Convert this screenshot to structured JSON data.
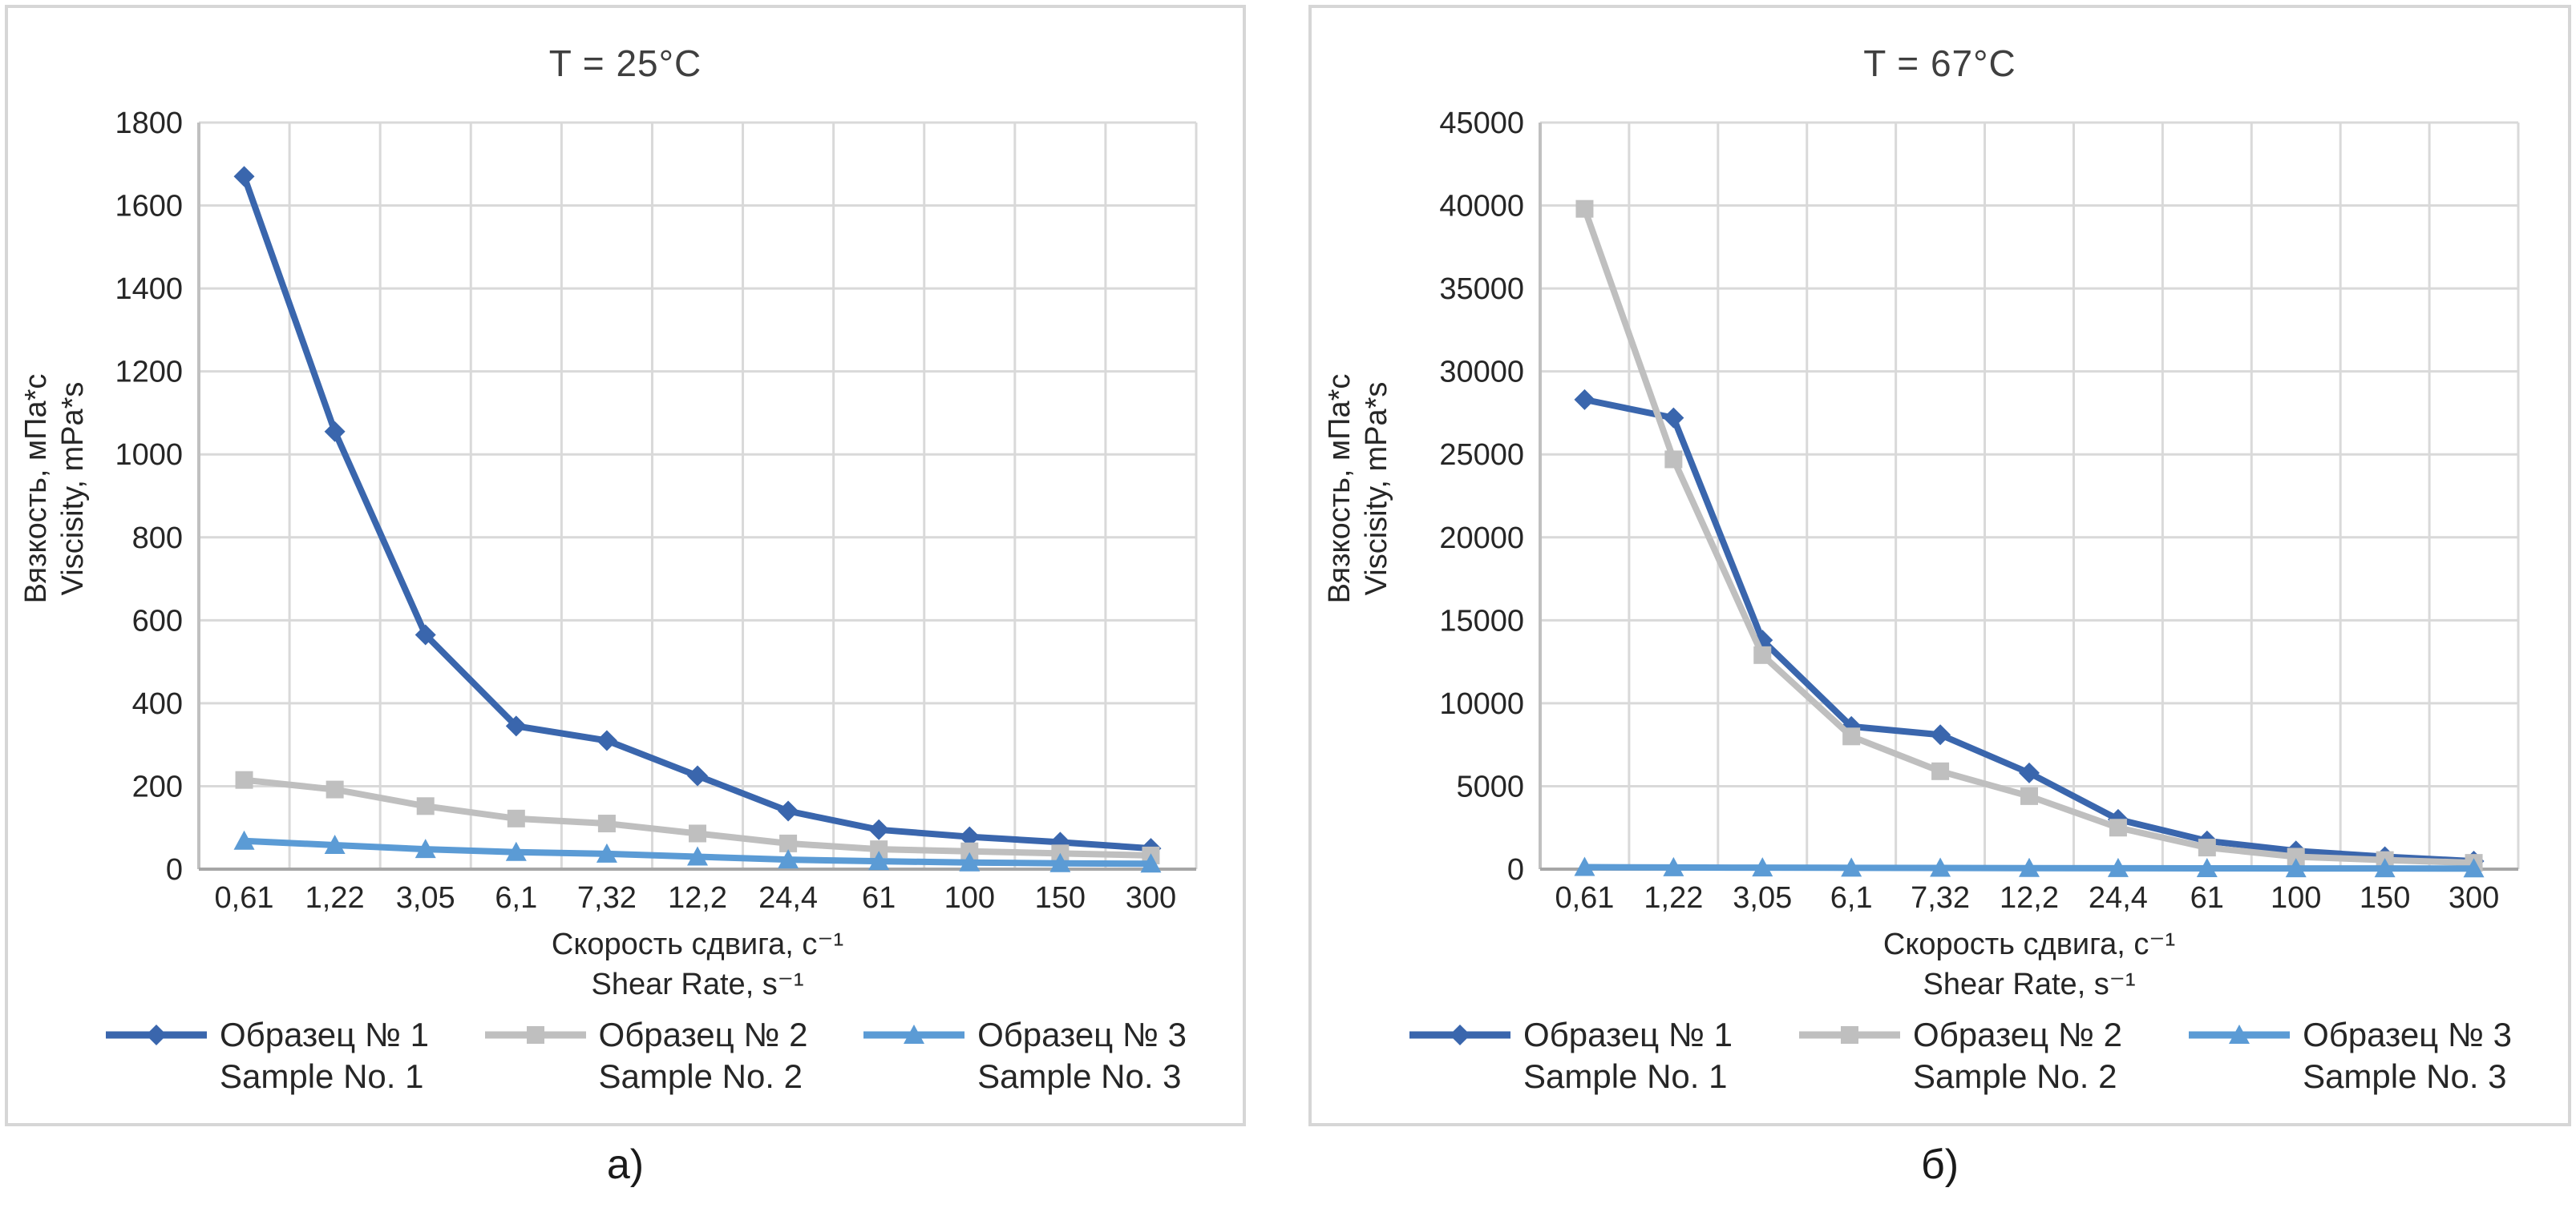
{
  "captions": [
    "а)",
    "б)"
  ],
  "colors": {
    "sample1": "#3a66ad",
    "sample2": "#bfbfbf",
    "sample3": "#5b9bd5",
    "gridline": "#d9d9d9",
    "axis_line": "#a6a6a6"
  },
  "chart_data": [
    {
      "type": "line",
      "title": "T = 25°C",
      "ylabel_ru": "Вязкость, мПа*с",
      "ylabel_en": "Viscisity, mPa*s",
      "xlabel_ru": "Скорость сдвига, с⁻¹",
      "xlabel_en": "Shear Rate, s⁻¹",
      "ylim": [
        0,
        1800
      ],
      "ystep": 200,
      "grid": true,
      "legend_position": "bottom",
      "categories": [
        "0,61",
        "1,22",
        "3,05",
        "6,1",
        "7,32",
        "12,2",
        "24,4",
        "61",
        "100",
        "150",
        "300"
      ],
      "series": [
        {
          "label_ru": "Образец № 1",
          "label_en": "Sample No. 1",
          "color": "#3a66ad",
          "marker": "diamond",
          "values": [
            1670,
            1055,
            565,
            345,
            310,
            225,
            140,
            95,
            78,
            65,
            50
          ]
        },
        {
          "label_ru": "Образец № 2",
          "label_en": "Sample No. 2",
          "color": "#bfbfbf",
          "marker": "square",
          "values": [
            215,
            192,
            152,
            122,
            110,
            86,
            62,
            48,
            43,
            38,
            33
          ]
        },
        {
          "label_ru": "Образец № 3",
          "label_en": "Sample No. 3",
          "color": "#5b9bd5",
          "marker": "triangle",
          "values": [
            68,
            58,
            48,
            41,
            37,
            30,
            23,
            19,
            16,
            14,
            13
          ]
        }
      ]
    },
    {
      "type": "line",
      "title": "T = 67°C",
      "ylabel_ru": "Вязкость, мПа*с",
      "ylabel_en": "Viscisity, mPa*s",
      "xlabel_ru": "Скорость сдвига, с⁻¹",
      "xlabel_en": "Shear Rate, s⁻¹",
      "ylim": [
        0,
        45000
      ],
      "ystep": 5000,
      "grid": true,
      "legend_position": "bottom",
      "categories": [
        "0,61",
        "1,22",
        "3,05",
        "6,1",
        "7,32",
        "12,2",
        "24,4",
        "61",
        "100",
        "150",
        "300"
      ],
      "series": [
        {
          "label_ru": "Образец № 1",
          "label_en": "Sample No. 1",
          "color": "#3a66ad",
          "marker": "diamond",
          "values": [
            28300,
            27200,
            13800,
            8600,
            8100,
            5800,
            3000,
            1700,
            1100,
            750,
            480
          ]
        },
        {
          "label_ru": "Образец № 2",
          "label_en": "Sample No. 2",
          "color": "#bfbfbf",
          "marker": "square",
          "values": [
            39800,
            24700,
            12900,
            8000,
            5900,
            4400,
            2500,
            1300,
            750,
            550,
            380
          ]
        },
        {
          "label_ru": "Образец № 3",
          "label_en": "Sample No. 3",
          "color": "#5b9bd5",
          "marker": "triangle",
          "values": [
            120,
            100,
            90,
            80,
            70,
            60,
            55,
            50,
            45,
            40,
            35
          ]
        }
      ]
    }
  ]
}
